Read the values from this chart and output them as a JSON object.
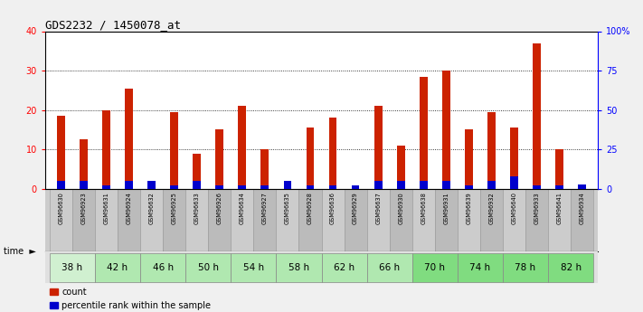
{
  "title": "GDS2232 / 1450078_at",
  "samples": [
    "GSM96630",
    "GSM96923",
    "GSM96631",
    "GSM96924",
    "GSM96632",
    "GSM96925",
    "GSM96633",
    "GSM96926",
    "GSM96634",
    "GSM96927",
    "GSM96635",
    "GSM96928",
    "GSM96636",
    "GSM96929",
    "GSM96637",
    "GSM96930",
    "GSM96638",
    "GSM96931",
    "GSM96639",
    "GSM96932",
    "GSM96640",
    "GSM96933",
    "GSM96641",
    "GSM96934"
  ],
  "count_values": [
    18.5,
    12.5,
    20.0,
    25.5,
    0.5,
    19.5,
    9.0,
    15.0,
    21.0,
    10.0,
    0.5,
    15.5,
    18.0,
    0.5,
    21.0,
    11.0,
    28.5,
    30.0,
    15.0,
    19.5,
    15.5,
    37.0,
    10.0,
    0.5
  ],
  "percentile_values": [
    5,
    5,
    2,
    5,
    5,
    2,
    5,
    2,
    2,
    2,
    5,
    2,
    2,
    2,
    5,
    5,
    5,
    5,
    2,
    5,
    8,
    2,
    2,
    3
  ],
  "time_groups": [
    {
      "label": "38 h",
      "start": 0,
      "end": 2,
      "color": "#d0f0d0"
    },
    {
      "label": "42 h",
      "start": 2,
      "end": 4,
      "color": "#b0e8b0"
    },
    {
      "label": "46 h",
      "start": 4,
      "end": 6,
      "color": "#b0e8b0"
    },
    {
      "label": "50 h",
      "start": 6,
      "end": 8,
      "color": "#b0e8b0"
    },
    {
      "label": "54 h",
      "start": 8,
      "end": 10,
      "color": "#b0e8b0"
    },
    {
      "label": "58 h",
      "start": 10,
      "end": 12,
      "color": "#b0e8b0"
    },
    {
      "label": "62 h",
      "start": 12,
      "end": 14,
      "color": "#b0e8b0"
    },
    {
      "label": "66 h",
      "start": 14,
      "end": 16,
      "color": "#b0e8b0"
    },
    {
      "label": "70 h",
      "start": 16,
      "end": 18,
      "color": "#80dc80"
    },
    {
      "label": "74 h",
      "start": 18,
      "end": 20,
      "color": "#80dc80"
    },
    {
      "label": "78 h",
      "start": 20,
      "end": 22,
      "color": "#80dc80"
    },
    {
      "label": "82 h",
      "start": 22,
      "end": 24,
      "color": "#80dc80"
    }
  ],
  "bar_color": "#cc2200",
  "percentile_color": "#0000cc",
  "ylim_left": [
    0,
    40
  ],
  "ylim_right": [
    0,
    100
  ],
  "yticks_left": [
    0,
    10,
    20,
    30,
    40
  ],
  "yticks_right": [
    0,
    25,
    50,
    75,
    100
  ],
  "ytick_labels_right": [
    "0",
    "25",
    "50",
    "75",
    "100%"
  ],
  "bar_width": 0.35,
  "plot_bg_color": "#ffffff",
  "fig_bg_color": "#f0f0f0",
  "sample_band_color": "#cccccc",
  "sample_band_alt_color": "#bbbbbb"
}
